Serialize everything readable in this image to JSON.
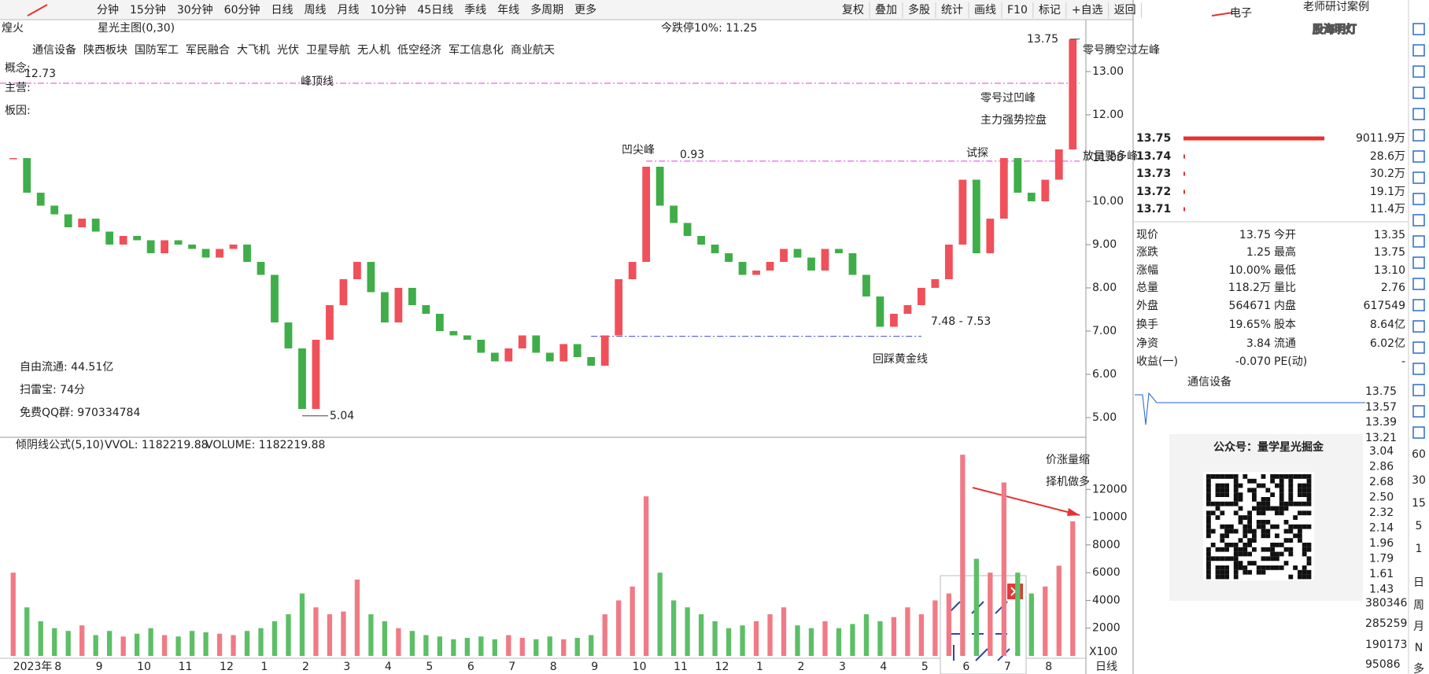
{
  "toolbar": {
    "items": [
      "分钟",
      "15分钟",
      "30分钟",
      "60分钟",
      "日线",
      "周线",
      "月线",
      "10分钟",
      "45日线",
      "季线",
      "年线",
      "多周期",
      "更多"
    ],
    "active_index": 4,
    "right_items": [
      "复权",
      "叠加",
      "多股",
      "统计",
      "画线",
      "F10",
      "标记",
      "+自选",
      "返回"
    ]
  },
  "header": {
    "stock_name": "煌火",
    "indicator": "星光主图(0,30)",
    "limit_down": "今跌停10%: 11.25",
    "concepts": [
      "通信设备",
      "陕西板块",
      "国防军工",
      "军民融合",
      "大飞机",
      "光伏",
      "卫星导航",
      "无人机",
      "低空经济",
      "军工信息化",
      "商业航天"
    ],
    "labels": [
      "概念:",
      "主营:",
      "板因:"
    ],
    "stats": [
      "自由流通: 44.51亿",
      "扫雷宝: 74分",
      "免费QQ群: 970334784"
    ]
  },
  "price_chart": {
    "type": "candlestick",
    "ylim": [
      4.6,
      14.2
    ],
    "yticks": [
      {
        "value": 5,
        "label": "5.00"
      },
      {
        "value": 6,
        "label": "6.00"
      },
      {
        "value": 7,
        "label": "7.00"
      },
      {
        "value": 8,
        "label": "8.00"
      },
      {
        "value": 9,
        "label": "9.00"
      },
      {
        "value": 10,
        "label": "10.00"
      },
      {
        "value": 11,
        "label": "11.00"
      },
      {
        "value": 12,
        "label": "12.00"
      },
      {
        "value": 13,
        "label": "13.00"
      }
    ],
    "categories": [
      "2023年",
      null,
      null,
      "8",
      null,
      null,
      "9",
      null,
      null,
      "10",
      null,
      null,
      "11",
      null,
      null,
      "12",
      null,
      null,
      "1",
      null,
      null,
      "2",
      null,
      null,
      "3",
      null,
      null,
      "4",
      null,
      null,
      "5",
      null,
      null,
      "6",
      null,
      null,
      "7",
      null,
      null,
      "8",
      null,
      null,
      "9",
      null,
      null,
      "10",
      null,
      null,
      "11",
      null,
      null,
      "12",
      null,
      null,
      "1",
      null,
      null,
      "2",
      null,
      null,
      "3",
      null,
      null,
      "4",
      null,
      null,
      "5",
      null,
      null,
      "6",
      null,
      null,
      "7",
      null,
      null,
      "8",
      null,
      null
    ],
    "closes": [
      11.0,
      10.2,
      9.9,
      9.7,
      9.4,
      9.6,
      9.3,
      9.0,
      9.2,
      9.1,
      8.8,
      9.1,
      9.0,
      8.9,
      8.7,
      8.9,
      9.0,
      8.6,
      8.3,
      7.2,
      6.6,
      5.2,
      6.8,
      7.6,
      8.2,
      8.6,
      7.9,
      7.2,
      8.0,
      7.6,
      7.4,
      7.0,
      6.9,
      6.8,
      6.5,
      6.3,
      6.6,
      6.9,
      6.5,
      6.3,
      6.7,
      6.4,
      6.2,
      6.9,
      8.2,
      8.6,
      10.8,
      9.9,
      9.5,
      9.2,
      9.0,
      8.8,
      8.6,
      8.3,
      8.4,
      8.6,
      8.9,
      8.7,
      8.4,
      8.9,
      8.8,
      8.3,
      7.8,
      7.1,
      7.4,
      7.6,
      8.0,
      8.2,
      9.0,
      10.5,
      8.8,
      9.6,
      11.0,
      10.2,
      10.0,
      10.5,
      11.2,
      13.75
    ],
    "up_color": "#f0505a",
    "down_color": "#3fae49",
    "peak_line": 12.73,
    "high": 13.75,
    "low": 5.04,
    "guide_lines": [
      {
        "value": 10.93,
        "from": 46,
        "color": "#e040e0"
      },
      {
        "value": 6.88,
        "from": 42,
        "to": 66,
        "color": "#3b4bd8"
      }
    ],
    "annotations": [
      "峰顶线",
      "凹尖峰",
      "试探",
      "零号腾空过左峰",
      "零号过凹峰",
      "主力强势控盘",
      "放量要多峰",
      "回踩黄金线",
      "7.48 - 7.53",
      "0.93"
    ]
  },
  "volume_chart": {
    "type": "bar",
    "header": [
      "倾阴线公式(5,10)",
      "VVOL: 1182219.88",
      "VOLUME: 1182219.88"
    ],
    "ylim": [
      0,
      15700
    ],
    "yticks": [
      2000,
      4000,
      6000,
      8000,
      10000,
      12000
    ],
    "values": [
      6000,
      3500,
      2500,
      2000,
      1800,
      2200,
      1500,
      1800,
      1400,
      1600,
      2000,
      1500,
      1400,
      1800,
      1700,
      1600,
      1500,
      1800,
      2000,
      2500,
      3000,
      4500,
      3500,
      3000,
      3200,
      5500,
      3000,
      2500,
      2000,
      1800,
      1500,
      1400,
      1200,
      1300,
      1400,
      1200,
      1500,
      1300,
      1200,
      1400,
      1200,
      1300,
      1500,
      3000,
      4000,
      5000,
      11500,
      6000,
      4000,
      3500,
      3000,
      2500,
      2000,
      2200,
      2500,
      3000,
      3500,
      2200,
      2000,
      2500,
      2000,
      2300,
      3000,
      2500,
      2800,
      3500,
      3000,
      4000,
      4500,
      14500,
      7000,
      6000,
      12500,
      6000,
      4500,
      5000,
      6500,
      9700
    ],
    "annotations": [
      "价涨量缩",
      "择机做多"
    ],
    "unit": "X100",
    "period": "日线"
  },
  "quote_panel": {
    "title": "电子",
    "case_tag": "老师研讨案例",
    "watermark": "股海明灯",
    "book": {
      "prices": [
        "13.75",
        "13.74",
        "13.73",
        "13.72",
        "13.71"
      ],
      "volumes": [
        9011.9,
        28.6,
        30.2,
        19.1,
        11.4
      ],
      "value_labels": [
        "9011.9万",
        "28.6万",
        "30.2万",
        "19.1万",
        "11.4万"
      ]
    },
    "rows": [
      [
        "现价",
        "13.75",
        "今开",
        "13.35"
      ],
      [
        "涨跌",
        "1.25",
        "最高",
        "13.75"
      ],
      [
        "涨幅",
        "10.00%",
        "最低",
        "13.10"
      ],
      [
        "总量",
        "118.2万",
        "量比",
        "2.76"
      ],
      [
        "外盘",
        "564671",
        "内盘",
        "617549"
      ],
      [
        "换手",
        "19.65%",
        "股本",
        "8.64亿"
      ],
      [
        "净资",
        "3.84",
        "流通",
        "6.02亿"
      ],
      [
        "收益(一)",
        "-0.070",
        "PE(动)",
        "-"
      ]
    ],
    "row_colors": [
      [
        "#e02020",
        "#e02020"
      ],
      [
        "#e02020",
        "#e02020"
      ],
      [
        "#e02020",
        "#e02020"
      ],
      [
        "#222",
        "#e02020"
      ],
      [
        "#e02020",
        "#1a9a2a"
      ],
      [
        "#e02020",
        "#222"
      ],
      [
        "#222",
        "#222"
      ],
      [
        "#222",
        "#222"
      ]
    ],
    "sector": "通信设备",
    "mini_labels": [
      "13.75",
      "13.57",
      "13.39",
      "13.21"
    ],
    "scale_labels": [
      "3.04",
      "2.86",
      "2.68",
      "2.50",
      "2.32",
      "2.14",
      "1.96",
      "1.79",
      "1.61",
      "1.43"
    ],
    "volume_labels": [
      "380346",
      "285259",
      "190173",
      "95086"
    ],
    "ad": "公众号：量学星光掘金"
  },
  "side_toolbar": {
    "items": [
      "60",
      "30",
      "15",
      "5",
      "1",
      "日",
      "周",
      "月",
      "N",
      "多"
    ]
  }
}
